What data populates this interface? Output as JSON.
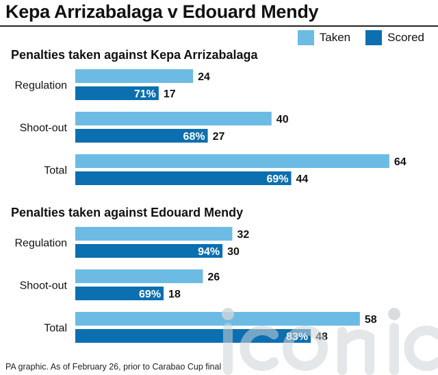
{
  "title": "Kepa Arrizabalaga v Edouard Mendy",
  "footnote": "PA graphic. As of February 26, prior to Carabao Cup final",
  "colors": {
    "taken": "#6cbbe4",
    "scored": "#0b6fb0"
  },
  "chart_data": [
    {
      "type": "bar",
      "orientation": "horizontal",
      "title": "Penalties taken against Kepa Arrizabalaga",
      "categories": [
        "Regulation",
        "Shoot-out",
        "Total"
      ],
      "series": [
        {
          "name": "Taken",
          "values": [
            24,
            40,
            64
          ]
        },
        {
          "name": "Scored",
          "values": [
            17,
            27,
            44
          ],
          "percent_labels": [
            "71%",
            "68%",
            "69%"
          ]
        }
      ],
      "legend": "top-right"
    },
    {
      "type": "bar",
      "orientation": "horizontal",
      "title": "Penalties taken against Edouard Mendy",
      "categories": [
        "Regulation",
        "Shoot-out",
        "Total"
      ],
      "series": [
        {
          "name": "Taken",
          "values": [
            32,
            26,
            58
          ]
        },
        {
          "name": "Scored",
          "values": [
            30,
            18,
            48
          ],
          "percent_labels": [
            "94%",
            "69%",
            "83%"
          ]
        }
      ],
      "legend": "top-right"
    }
  ]
}
